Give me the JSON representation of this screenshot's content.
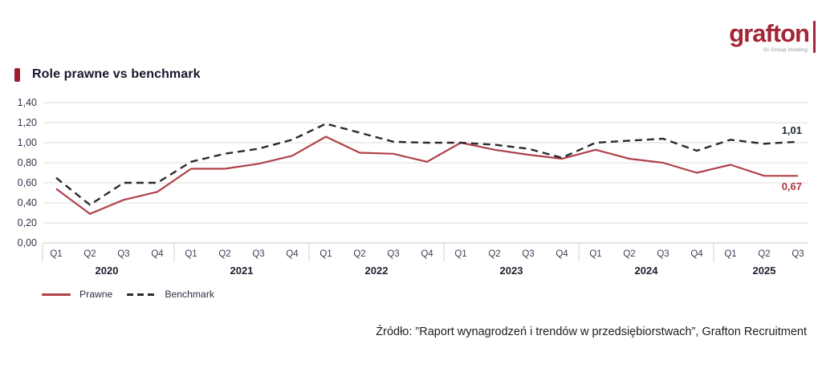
{
  "logo": {
    "brand": "grafton",
    "subbrand": "Gi Group Holding",
    "color": "#a32638"
  },
  "header": {
    "title": "Role prawne vs benchmark",
    "accent_color": "#9e1b32"
  },
  "chart_data": {
    "type": "line",
    "title": "Role prawne vs benchmark",
    "ylim": [
      0,
      1.4
    ],
    "y_tick_step": 0.2,
    "y_tick_labels": [
      "1,40",
      "1,20",
      "1,00",
      "0,80",
      "0,60",
      "0,40",
      "0,20",
      "0,00"
    ],
    "grid": "horizontal",
    "legend_position": "bottom-left",
    "x_groups": [
      {
        "year": "2020",
        "quarters": [
          "Q1",
          "Q2",
          "Q3",
          "Q4"
        ]
      },
      {
        "year": "2021",
        "quarters": [
          "Q1",
          "Q2",
          "Q3",
          "Q4"
        ]
      },
      {
        "year": "2022",
        "quarters": [
          "Q1",
          "Q2",
          "Q3",
          "Q4"
        ]
      },
      {
        "year": "2023",
        "quarters": [
          "Q1",
          "Q2",
          "Q3",
          "Q4"
        ]
      },
      {
        "year": "2024",
        "quarters": [
          "Q1",
          "Q2",
          "Q3",
          "Q4"
        ]
      },
      {
        "year": "2025",
        "quarters": [
          "Q1",
          "Q2",
          "Q3"
        ]
      }
    ],
    "series": [
      {
        "name": "Prawne",
        "color": "#b04149",
        "line_style": "solid",
        "end_label": "0,67",
        "end_label_color": "#b03540",
        "values": [
          0.54,
          0.29,
          0.43,
          0.51,
          0.74,
          0.74,
          0.79,
          0.87,
          1.06,
          0.9,
          0.89,
          0.81,
          1.0,
          0.93,
          0.88,
          0.84,
          0.93,
          0.84,
          0.8,
          0.7,
          0.78,
          0.67,
          0.67
        ]
      },
      {
        "name": "Benchmark",
        "color": "#2b2b2b",
        "line_style": "dashed",
        "end_label": "1,01",
        "end_label_color": "#1f2433",
        "values": [
          0.65,
          0.38,
          0.6,
          0.6,
          0.81,
          0.89,
          0.94,
          1.03,
          1.19,
          1.1,
          1.01,
          1.0,
          1.0,
          0.98,
          0.94,
          0.85,
          1.0,
          1.02,
          1.04,
          0.92,
          1.03,
          0.99,
          1.01
        ]
      }
    ]
  },
  "legend": {
    "items": [
      {
        "label": "Prawne",
        "style": "solid",
        "color": "#b04149"
      },
      {
        "label": "Benchmark",
        "style": "dashed",
        "color": "#2b2b2b"
      }
    ]
  },
  "source": "Źródło: ”Raport wynagrodzeń i trendów w przedsiębiorstwach”, Grafton Recruitment"
}
